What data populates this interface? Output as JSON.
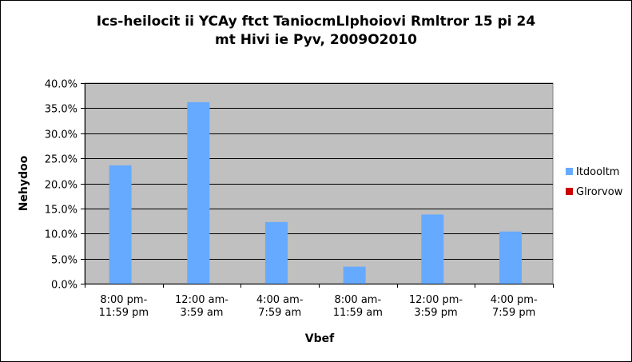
{
  "chart_data": {
    "type": "bar",
    "title_line1": "Ics-heilocit ii YCAy ftct TaniocmLIphoiovi Rmltror 15 pi 24",
    "title_line2": "mt Hivi ie Pyv, 2009O2010",
    "xlabel": "Vbef",
    "ylabel": "Nehydoo",
    "categories": [
      [
        "8:00 pm-",
        "11:59 pm"
      ],
      [
        "12:00 am-",
        "3:59 am"
      ],
      [
        "4:00 am-",
        "7:59 am"
      ],
      [
        "8:00 am-",
        "11:59 am"
      ],
      [
        "12:00 pm-",
        "3:59 pm"
      ],
      [
        "4:00 pm-",
        "7:59 pm"
      ]
    ],
    "series": [
      {
        "name": "Itdooltm",
        "color": "#66aaff",
        "values": [
          23.6,
          36.2,
          12.3,
          3.4,
          13.8,
          10.4
        ]
      },
      {
        "name": "Glrorvow",
        "color": "#cc0000",
        "values": [
          0,
          0,
          0,
          0,
          0,
          0
        ]
      }
    ],
    "ylim": [
      0,
      40
    ],
    "yticks": [
      "0.0%",
      "5.0%",
      "10.0%",
      "15.0%",
      "20.0%",
      "25.0%",
      "30.0%",
      "35.0%",
      "40.0%"
    ],
    "plot_background": "#c0c0c0",
    "grid": true,
    "legend_position": "right"
  }
}
